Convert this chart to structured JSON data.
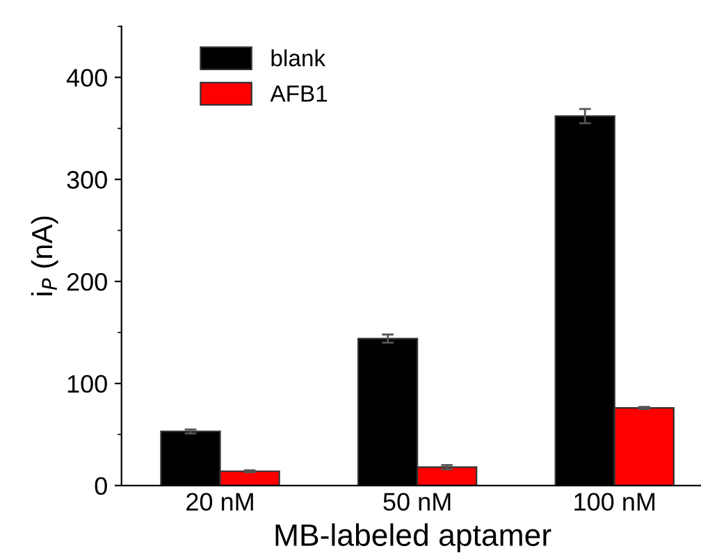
{
  "chart_data": {
    "type": "bar",
    "xlabel": "MB-labeled aptamer",
    "ylabel": "i$_{P}$ (nA)",
    "categories": [
      "20 nM",
      "50 nM",
      "100 nM"
    ],
    "series": [
      {
        "name": "blank",
        "color": "#000000",
        "values": [
          53,
          144,
          362
        ],
        "errors": [
          2,
          4,
          7
        ]
      },
      {
        "name": "AFB1",
        "color": "#ff0000",
        "values": [
          14,
          18,
          76
        ],
        "errors": [
          1,
          2,
          1
        ]
      }
    ],
    "ylim": [
      0,
      450
    ],
    "yticks": [
      0,
      100,
      200,
      300,
      400
    ],
    "grid": false,
    "legend": "top left"
  }
}
